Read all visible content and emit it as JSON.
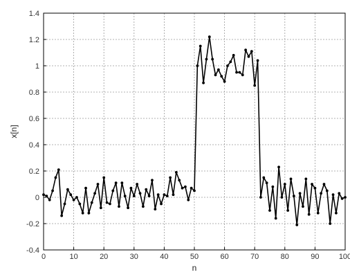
{
  "chart_data": {
    "type": "line",
    "title": "",
    "xlabel": "n",
    "ylabel": "x[n]",
    "xlim": [
      0,
      100
    ],
    "ylim": [
      -0.4,
      1.4
    ],
    "xticks": [
      0,
      10,
      20,
      30,
      40,
      50,
      60,
      70,
      80,
      90,
      100
    ],
    "yticks": [
      -0.4,
      -0.2,
      0,
      0.2,
      0.4,
      0.6,
      0.8,
      1,
      1.2,
      1.4
    ],
    "xtick_labels": [
      "0",
      "10",
      "20",
      "30",
      "40",
      "50",
      "60",
      "70",
      "80",
      "90",
      "100"
    ],
    "ytick_labels": [
      "-0.4",
      "-0.2",
      "0",
      "0.2",
      "0.4",
      "0.6",
      "0.8",
      "1",
      "1.2",
      "1.4"
    ],
    "grid": true,
    "line_color": "#000000",
    "grid_color": "#999999",
    "series": [
      {
        "x": [
          0,
          1,
          2,
          3,
          4,
          5,
          6,
          7,
          8,
          9,
          10,
          11,
          12,
          13,
          14,
          15,
          16,
          17,
          18,
          19,
          20,
          21,
          22,
          23,
          24,
          25,
          26,
          27,
          28,
          29,
          30,
          31,
          32,
          33,
          34,
          35,
          36,
          37,
          38,
          39,
          40,
          41,
          42,
          43,
          44,
          45,
          46,
          47,
          48,
          49,
          50,
          51,
          52,
          53,
          54,
          55,
          56,
          57,
          58,
          59,
          60,
          61,
          62,
          63,
          64,
          65,
          66,
          67,
          68,
          69,
          70,
          71,
          72,
          73,
          74,
          75,
          76,
          77,
          78,
          79,
          80,
          81,
          82,
          83,
          84,
          85,
          86,
          87,
          88,
          89,
          90,
          91,
          92,
          93,
          94,
          95,
          96,
          97,
          98,
          99,
          100
        ],
        "values": [
          0.02,
          0.01,
          -0.02,
          0.05,
          0.15,
          0.21,
          -0.14,
          -0.05,
          0.06,
          0.02,
          -0.02,
          0.0,
          -0.05,
          -0.12,
          0.07,
          -0.12,
          -0.04,
          0.03,
          0.1,
          -0.08,
          0.15,
          -0.04,
          -0.05,
          0.05,
          0.11,
          -0.07,
          0.11,
          0.01,
          -0.08,
          0.07,
          0.01,
          0.1,
          0.03,
          -0.07,
          0.06,
          0.01,
          0.13,
          -0.09,
          0.02,
          -0.05,
          0.02,
          0.01,
          0.15,
          0.02,
          0.19,
          0.13,
          0.07,
          0.08,
          -0.02,
          0.07,
          0.05,
          1.0,
          1.15,
          0.87,
          1.05,
          1.22,
          1.05,
          0.93,
          0.97,
          0.92,
          0.88,
          1.0,
          1.03,
          1.08,
          0.95,
          0.95,
          0.93,
          1.12,
          1.07,
          1.11,
          0.85,
          1.04,
          0.0,
          0.15,
          0.11,
          -0.1,
          0.08,
          -0.16,
          0.23,
          0.0,
          0.1,
          -0.1,
          0.14,
          0.01,
          -0.21,
          0.03,
          -0.07,
          0.14,
          -0.13,
          0.1,
          0.07,
          -0.12,
          0.03,
          0.1,
          0.05,
          -0.2,
          0.02,
          -0.12,
          0.03,
          -0.01,
          0.0
        ]
      }
    ]
  }
}
